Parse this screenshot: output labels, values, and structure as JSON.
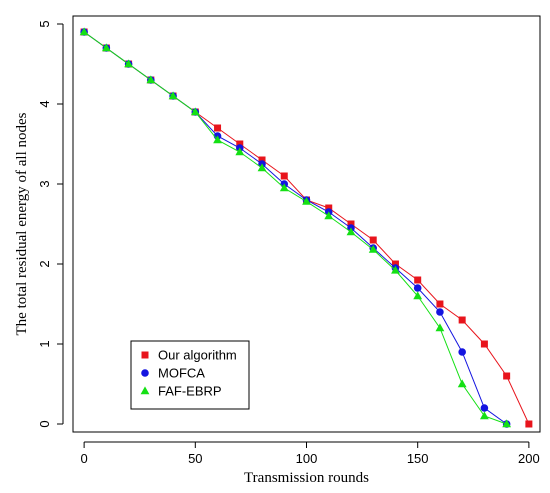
{
  "chart_data": {
    "type": "line",
    "title": "",
    "xlabel": "Transmission rounds",
    "ylabel": "The total residual energy of all nodes",
    "xlim": [
      -5,
      205
    ],
    "ylim": [
      -0.1,
      5.1
    ],
    "x_ticks": [
      0,
      50,
      100,
      150,
      200
    ],
    "y_ticks": [
      0,
      1,
      2,
      3,
      4,
      5
    ],
    "x_tick_labels": [
      "0",
      "50",
      "100",
      "150",
      "200"
    ],
    "y_tick_labels": [
      "0",
      "1",
      "2",
      "3",
      "4",
      "5"
    ],
    "grid": false,
    "legend_position": "bottom-left",
    "series": [
      {
        "name": "Our algorithm",
        "color": "#e8141c",
        "marker": "square",
        "x": [
          0,
          10,
          20,
          30,
          40,
          50,
          60,
          70,
          80,
          90,
          100,
          110,
          120,
          130,
          140,
          150,
          160,
          170,
          180,
          190,
          200
        ],
        "y": [
          4.9,
          4.7,
          4.5,
          4.3,
          4.1,
          3.9,
          3.7,
          3.5,
          3.3,
          3.1,
          2.8,
          2.7,
          2.5,
          2.3,
          2.0,
          1.8,
          1.5,
          1.3,
          1.0,
          0.6,
          0.0
        ]
      },
      {
        "name": "MOFCA",
        "color": "#1414e0",
        "marker": "circle",
        "x": [
          0,
          10,
          20,
          30,
          40,
          50,
          60,
          70,
          80,
          90,
          100,
          110,
          120,
          130,
          140,
          150,
          160,
          170,
          180,
          190
        ],
        "y": [
          4.9,
          4.7,
          4.5,
          4.3,
          4.1,
          3.9,
          3.6,
          3.45,
          3.25,
          3.0,
          2.8,
          2.65,
          2.45,
          2.2,
          1.95,
          1.7,
          1.4,
          0.9,
          0.2,
          0.0
        ]
      },
      {
        "name": "FAF-EBRP",
        "color": "#14e014",
        "marker": "triangle",
        "x": [
          0,
          10,
          20,
          30,
          40,
          50,
          60,
          70,
          80,
          90,
          100,
          110,
          120,
          130,
          140,
          150,
          160,
          170,
          180,
          190
        ],
        "y": [
          4.9,
          4.7,
          4.5,
          4.3,
          4.1,
          3.9,
          3.55,
          3.4,
          3.2,
          2.95,
          2.78,
          2.6,
          2.4,
          2.18,
          1.92,
          1.6,
          1.2,
          0.5,
          0.1,
          0.0
        ]
      }
    ]
  }
}
